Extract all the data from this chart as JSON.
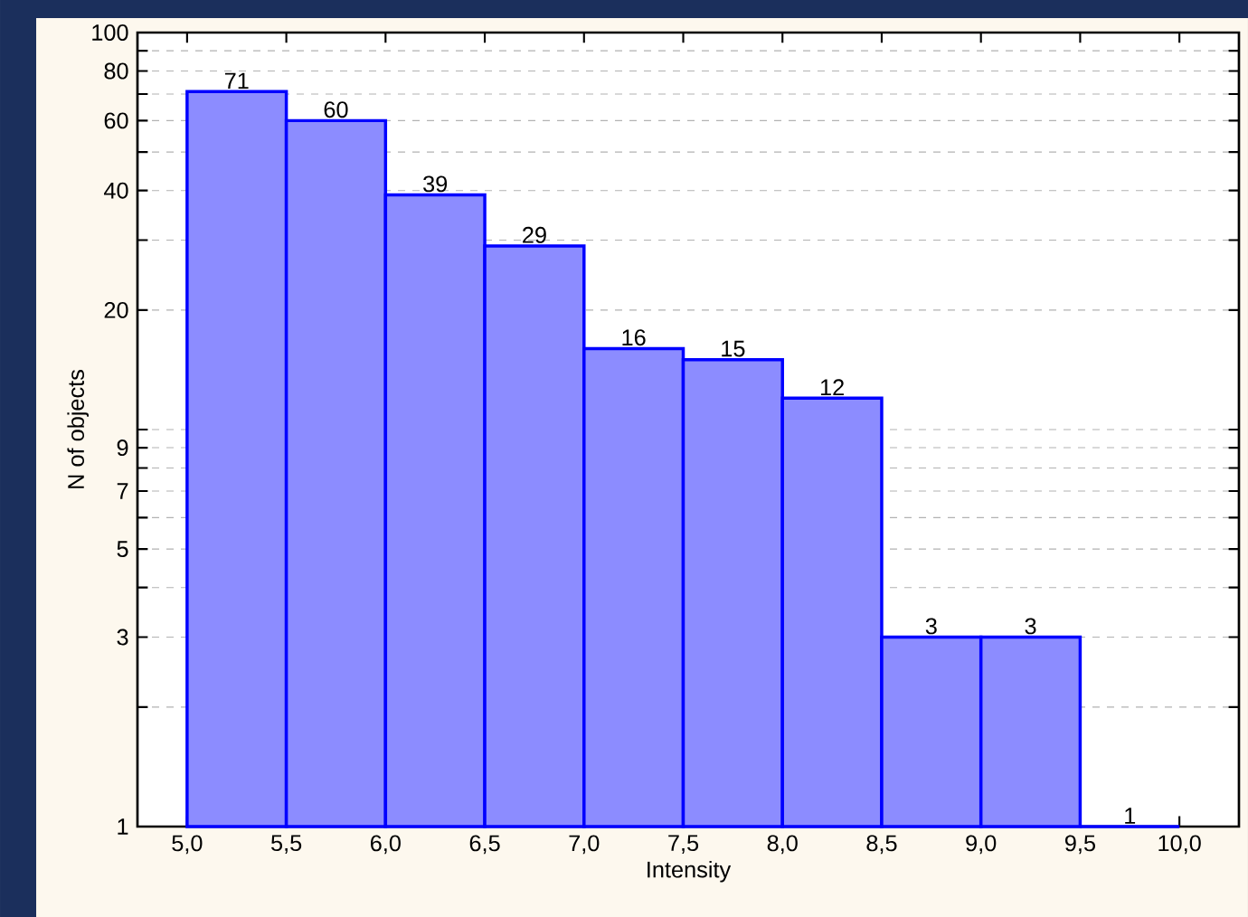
{
  "chart_data": {
    "type": "histogram",
    "xlabel": "Intensity",
    "ylabel": "N of objects",
    "bins": [
      5.0,
      5.5,
      6.0,
      6.5,
      7.0,
      7.5,
      8.0,
      8.5,
      9.0,
      9.5,
      10.0
    ],
    "values": [
      71,
      60,
      39,
      29,
      16,
      15,
      12,
      3,
      3,
      1
    ],
    "color": "#0000ff",
    "data_labels": true,
    "log": "y",
    "grid": "y",
    "xlim": [
      4.75,
      10.3
    ],
    "ylim": [
      1,
      100
    ],
    "xticks": [
      {
        "value": 5.0,
        "label": "5,0"
      },
      {
        "value": 5.5,
        "label": "5,5"
      },
      {
        "value": 6.0,
        "label": "6,0"
      },
      {
        "value": 6.5,
        "label": "6,5"
      },
      {
        "value": 7.0,
        "label": "7,0"
      },
      {
        "value": 7.5,
        "label": "7,5"
      },
      {
        "value": 8.0,
        "label": "8,0"
      },
      {
        "value": 8.5,
        "label": "8,5"
      },
      {
        "value": 9.0,
        "label": "9,0"
      },
      {
        "value": 9.5,
        "label": "9,5"
      },
      {
        "value": 10.0,
        "label": "10,0"
      }
    ],
    "yticks": [
      1,
      {
        "value": 2,
        "label": null
      },
      3,
      {
        "value": 4,
        "label": null
      },
      5,
      {
        "value": 6,
        "label": null
      },
      7,
      {
        "value": 8,
        "label": null
      },
      9,
      {
        "value": 10,
        "label": null
      },
      20,
      {
        "value": 30,
        "label": null
      },
      40,
      {
        "value": 50,
        "label": null
      },
      60,
      {
        "value": 70,
        "label": null
      },
      80,
      {
        "value": 90,
        "label": null
      },
      100
    ]
  }
}
